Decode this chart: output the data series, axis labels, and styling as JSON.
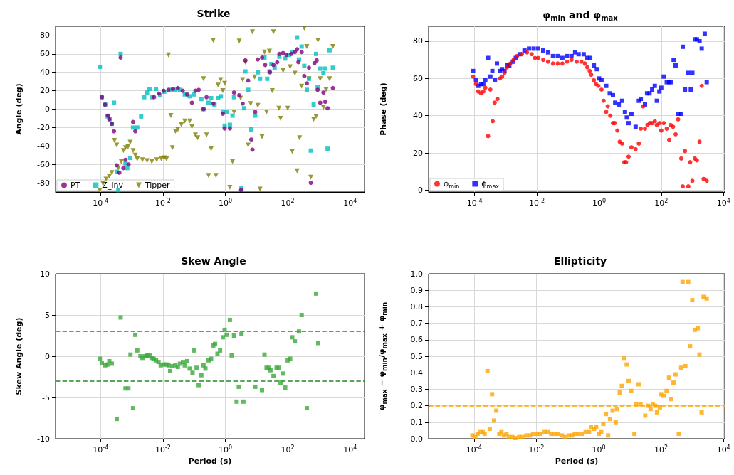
{
  "chart_data": [
    {
      "type": "scatter",
      "title": "Strike",
      "ylabel": "Angle (deg)",
      "log": "x",
      "grid": true,
      "legend": "bottom left",
      "xlim": [
        3.6e-06,
        29000.0
      ],
      "xticks": [
        {
          "value": 0.0001,
          "label": "10$^{-4}$"
        },
        {
          "value": 0.01,
          "label": "10$^{-2}$"
        },
        {
          "value": 1,
          "label": "10$^{0}$"
        },
        {
          "value": 100,
          "label": "10$^{2}$"
        },
        {
          "value": 10000,
          "label": "10$^{4}$"
        }
      ],
      "ylim": [
        -90,
        90
      ],
      "yticks": [
        -80,
        -60,
        -40,
        -20,
        0,
        20,
        40,
        60,
        80
      ],
      "series": [
        {
          "name": "PT",
          "color": "#800080",
          "marker": "circle",
          "x": [
            0.00011,
            0.00014,
            0.00017,
            0.00019,
            0.00023,
            0.00027,
            0.00033,
            0.0004,
            0.00044,
            0.00054,
            0.00063,
            0.00079,
            0.0011,
            0.0013,
            0.0052,
            0.0074,
            0.0105,
            0.015,
            0.021,
            0.03,
            0.043,
            0.06,
            0.085,
            0.11,
            0.14,
            0.2,
            0.25,
            0.41,
            0.83,
            0.95,
            1.4,
            1.9,
            2.8,
            3.2,
            3.6,
            4.4,
            5.4,
            6.8,
            7.4,
            9.1,
            11,
            15,
            19,
            27,
            35,
            46,
            54,
            71,
            91,
            130,
            170,
            200,
            220,
            280,
            340,
            410,
            480,
            550,
            720,
            850,
            910,
            1100,
            1400,
            1600,
            1900,
            2800
          ],
          "values": [
            13,
            5,
            -7,
            -11,
            -16,
            -24,
            -61,
            -69,
            56,
            -64,
            -55,
            -60,
            -14,
            -24,
            13,
            17,
            20,
            21,
            22,
            23,
            20,
            16,
            7,
            20,
            21,
            0,
            13,
            6,
            -5,
            -21,
            -21,
            18,
            15,
            -88,
            6,
            53,
            31,
            -33,
            -44,
            -3,
            54,
            56,
            48,
            40,
            48,
            51,
            60,
            61,
            59,
            60,
            62,
            65,
            51,
            62,
            36,
            28,
            45,
            -80,
            50,
            53,
            21,
            7,
            18,
            8,
            1,
            23
          ]
        },
        {
          "name": "Z_inv",
          "color": "#00bfbf",
          "marker": "square",
          "x": [
            9.5e-05,
            0.00011,
            0.00014,
            0.00017,
            0.0002,
            0.00023,
            0.00027,
            0.00033,
            0.00037,
            0.00044,
            0.00063,
            0.00072,
            0.00089,
            0.0011,
            0.0015,
            0.002,
            0.0025,
            0.0031,
            0.0037,
            0.0044,
            0.006,
            0.0081,
            0.011,
            0.018,
            0.025,
            0.035,
            0.05,
            0.072,
            0.1,
            0.17,
            0.2,
            0.29,
            0.35,
            0.45,
            0.59,
            0.72,
            0.83,
            0.95,
            1.1,
            1.4,
            1.7,
            1.9,
            3.3,
            4.0,
            4.4,
            5.4,
            6.8,
            9.1,
            11,
            13,
            18,
            22,
            26,
            30,
            38,
            54,
            83,
            110,
            140,
            200,
            230,
            280,
            340,
            410,
            480,
            550,
            680,
            810,
            910,
            1100,
            1400,
            1600,
            1900,
            2200,
            2800
          ],
          "values": [
            46,
            13,
            5,
            -8,
            -11,
            -16,
            7,
            -68,
            -88,
            60,
            -59,
            -64,
            -53,
            -20,
            -20,
            -8,
            13,
            18,
            22,
            13,
            22,
            15,
            19,
            21,
            21,
            21,
            16,
            14,
            16,
            11,
            0,
            7,
            12,
            5,
            12,
            14,
            -3,
            -18,
            -3,
            -17,
            -7,
            13,
            -86,
            1,
            41,
            21,
            -22,
            -7,
            40,
            33,
            56,
            33,
            41,
            49,
            45,
            57,
            55,
            59,
            62,
            78,
            54,
            68,
            47,
            21,
            33,
            -45,
            5,
            60,
            24,
            44,
            39,
            44,
            -43,
            64,
            45
          ]
        },
        {
          "name": "Tipper",
          "color": "#808000",
          "marker": "triangle",
          "x": [
            9.5e-05,
            0.00012,
            0.00015,
            0.00019,
            0.00023,
            0.00028,
            0.00033,
            0.00037,
            0.00046,
            0.00054,
            0.00063,
            0.00076,
            0.00089,
            0.0011,
            0.0013,
            0.0015,
            0.0022,
            0.0031,
            0.0044,
            0.0063,
            0.0089,
            0.011,
            0.013,
            0.015,
            0.018,
            0.02,
            0.025,
            0.03,
            0.039,
            0.05,
            0.072,
            0.085,
            0.11,
            0.13,
            0.2,
            0.25,
            0.29,
            0.35,
            0.41,
            0.5,
            0.59,
            0.71,
            0.83,
            0.95,
            1.4,
            1.7,
            1.9,
            2.8,
            3.1,
            3.6,
            4.4,
            5.4,
            6.5,
            7.4,
            8.7,
            11,
            13,
            15,
            18,
            21,
            26,
            32,
            35,
            52,
            59,
            71,
            100,
            120,
            140,
            170,
            200,
            240,
            280,
            340,
            410,
            480,
            550,
            680,
            810,
            930,
            1100,
            1400,
            1700,
            2200,
            2800
          ],
          "values": [
            -88,
            -81,
            -76,
            -73,
            -69,
            -34,
            -39,
            -64,
            -57,
            -45,
            -42,
            -41,
            -36,
            -45,
            -50,
            -54,
            -55,
            -56,
            -57,
            -55,
            -54,
            -53,
            -54,
            59,
            -7,
            -42,
            -24,
            -22,
            -17,
            -13,
            -13,
            -19,
            -28,
            -31,
            33,
            -28,
            -72,
            -43,
            75,
            -72,
            26,
            32,
            20,
            28,
            -85,
            -57,
            -3,
            74,
            12,
            32,
            51,
            -39,
            6,
            84,
            35,
            4,
            -87,
            -30,
            62,
            -3,
            63,
            20,
            84,
            1,
            -10,
            42,
            1,
            46,
            -46,
            39,
            -67,
            -31,
            25,
            88,
            68,
            33,
            -74,
            -11,
            -8,
            75,
            33,
            2,
            21,
            33,
            68
          ]
        }
      ]
    },
    {
      "type": "scatter",
      "title": "φ$_{min}$ and φ$_{max}$",
      "ylabel": "Phase (deg)",
      "log": "x",
      "grid": true,
      "legend": "bottom left",
      "xlim": [
        3.3e-06,
        11000.0
      ],
      "xticks": [
        {
          "value": 0.0001,
          "label": "10$^{-4}$"
        },
        {
          "value": 0.01,
          "label": "10$^{-2}$"
        },
        {
          "value": 1,
          "label": "10$^{0}$"
        },
        {
          "value": 100,
          "label": "10$^{2}$"
        },
        {
          "value": 10000,
          "label": "10$^{4}$"
        }
      ],
      "ylim": [
        -1,
        88
      ],
      "yticks": [
        0,
        20,
        40,
        60,
        80
      ],
      "series": [
        {
          "name": "ϕ$_{min}$",
          "color": "#ff0000",
          "marker": "circle",
          "x": [
            8.9e-05,
            0.00011,
            0.00013,
            0.00016,
            0.00019,
            0.00022,
            0.00027,
            0.00032,
            0.00038,
            0.00044,
            0.00054,
            0.00065,
            0.00076,
            0.00091,
            0.0011,
            0.0014,
            0.0018,
            0.0023,
            0.0033,
            0.0048,
            0.0068,
            0.0087,
            0.011,
            0.016,
            0.023,
            0.033,
            0.047,
            0.066,
            0.093,
            0.13,
            0.19,
            0.27,
            0.35,
            0.42,
            0.5,
            0.56,
            0.68,
            0.79,
            0.95,
            1.2,
            1.4,
            1.7,
            1.9,
            2.3,
            2.8,
            3.2,
            3.9,
            4.6,
            5.5,
            6.5,
            7.4,
            8.9,
            11,
            15,
            19,
            22,
            26,
            30,
            36,
            43,
            51,
            62,
            72,
            87,
            100,
            120,
            150,
            180,
            200,
            240,
            290,
            350,
            440,
            490,
            580,
            740,
            850,
            1000,
            1200,
            1400,
            1700,
            2000,
            2300,
            2900
          ],
          "values": [
            61,
            57,
            53,
            52,
            53,
            55,
            29,
            54,
            37,
            47,
            49,
            60,
            61,
            63,
            66,
            68,
            70,
            72,
            73,
            74,
            73,
            71,
            71,
            70,
            69,
            68,
            68,
            68,
            69,
            70,
            69,
            69,
            68,
            66,
            64,
            62,
            59,
            57,
            56,
            54,
            48,
            42,
            45,
            40,
            36,
            36,
            32,
            26,
            25,
            15,
            15,
            18,
            23,
            22,
            25,
            33,
            45,
            33,
            35,
            36,
            36,
            37,
            35,
            36,
            32,
            36,
            33,
            27,
            35,
            34,
            30,
            38,
            17,
            2,
            21,
            2,
            15,
            5,
            17,
            16,
            26,
            56,
            6,
            5
          ]
        },
        {
          "name": "ϕ$_{max}$",
          "color": "#0000ff",
          "marker": "square",
          "x": [
            8.9e-05,
            0.00011,
            0.00013,
            0.00016,
            0.00019,
            0.00022,
            0.00027,
            0.00032,
            0.00037,
            0.00045,
            0.00052,
            0.00065,
            0.00076,
            0.00091,
            0.0011,
            0.0013,
            0.0017,
            0.0021,
            0.0028,
            0.004,
            0.0056,
            0.0079,
            0.011,
            0.016,
            0.023,
            0.033,
            0.047,
            0.066,
            0.093,
            0.13,
            0.17,
            0.22,
            0.32,
            0.42,
            0.52,
            0.68,
            0.85,
            1.0,
            1.2,
            1.7,
            2.2,
            2.8,
            3.3,
            4.3,
            5.5,
            6.8,
            7.8,
            8.9,
            11,
            15,
            19,
            22,
            30,
            35,
            42,
            51,
            62,
            72,
            87,
            100,
            120,
            150,
            180,
            210,
            250,
            290,
            350,
            440,
            490,
            580,
            740,
            890,
            1000,
            1200,
            1400,
            1700,
            2000,
            2500,
            2900
          ],
          "values": [
            64,
            59,
            56,
            57,
            57,
            59,
            71,
            61,
            64,
            59,
            68,
            64,
            65,
            64,
            67,
            67,
            69,
            71,
            73,
            75,
            76,
            76,
            76,
            75,
            74,
            72,
            72,
            71,
            72,
            72,
            74,
            73,
            73,
            71,
            71,
            67,
            65,
            60,
            59,
            56,
            52,
            51,
            47,
            46,
            48,
            42,
            39,
            36,
            41,
            34,
            48,
            49,
            46,
            52,
            52,
            54,
            56,
            48,
            53,
            55,
            61,
            58,
            58,
            58,
            70,
            67,
            41,
            41,
            77,
            54,
            63,
            54,
            63,
            81,
            81,
            80,
            76,
            84,
            58
          ]
        }
      ]
    },
    {
      "type": "scatter",
      "title": "Skew Angle",
      "xlabel": "Period (s)",
      "ylabel": "Skew Angle (deg)",
      "log": "x",
      "grid": true,
      "xlim": [
        3.6e-06,
        29000.0
      ],
      "xticks": [
        {
          "value": 0.0001,
          "label": "10$^{-4}$"
        },
        {
          "value": 0.01,
          "label": "10$^{-2}$"
        },
        {
          "value": 1,
          "label": "10$^{0}$"
        },
        {
          "value": 100,
          "label": "10$^{2}$"
        },
        {
          "value": 10000,
          "label": "10$^{4}$"
        }
      ],
      "ylim": [
        -10,
        10
      ],
      "yticks": [
        -10,
        -5,
        0,
        5,
        10
      ],
      "ref_lines": [
        {
          "axis": "y",
          "value": 3,
          "color": "#228b22",
          "line_style": "dashed"
        },
        {
          "axis": "y",
          "value": -3,
          "color": "#228b22",
          "line_style": "dashed"
        }
      ],
      "series": [
        {
          "color": "#3aa83a",
          "marker": "square",
          "x": [
            9.5e-05,
            0.00011,
            0.00014,
            0.00017,
            0.00019,
            0.00023,
            0.00033,
            0.00044,
            0.00063,
            0.00078,
            0.00091,
            0.0011,
            0.0013,
            0.0015,
            0.0019,
            0.0022,
            0.0026,
            0.0031,
            0.0037,
            0.0043,
            0.005,
            0.006,
            0.0072,
            0.0085,
            0.0105,
            0.013,
            0.015,
            0.017,
            0.02,
            0.025,
            0.03,
            0.035,
            0.044,
            0.05,
            0.06,
            0.072,
            0.089,
            0.1,
            0.12,
            0.14,
            0.17,
            0.2,
            0.23,
            0.29,
            0.35,
            0.41,
            0.47,
            0.56,
            0.68,
            0.83,
            0.95,
            1.1,
            1.4,
            1.6,
            1.9,
            2.3,
            2.7,
            3.3,
            3.8,
            9.1,
            15,
            18,
            21,
            25,
            28,
            35,
            44,
            52,
            59,
            71,
            83,
            100,
            120,
            140,
            170,
            230,
            280,
            410,
            810,
            950
          ],
          "values": [
            -0.3,
            -0.8,
            -1.1,
            -1.0,
            -0.6,
            -0.9,
            -7.6,
            4.7,
            -3.9,
            -3.9,
            0.2,
            -6.3,
            2.6,
            0.7,
            0,
            -0.2,
            0,
            0.1,
            0.1,
            -0.2,
            -0.3,
            -0.5,
            -0.7,
            -1.1,
            -1.0,
            -1.0,
            -1.1,
            -1.8,
            -1.2,
            -1.1,
            -1.3,
            -0.9,
            -0.7,
            -1.1,
            -0.6,
            -1.5,
            -2.0,
            0.7,
            -1.4,
            -3.5,
            -2.3,
            -1.1,
            -1.5,
            -0.5,
            -0.3,
            1.3,
            1.5,
            0.3,
            0.7,
            2.3,
            3.2,
            2.6,
            4.4,
            0.1,
            2.5,
            -5.5,
            -3.7,
            2.7,
            -5.5,
            -3.7,
            -4.1,
            0.2,
            -1.4,
            -1.4,
            -1.7,
            -2.4,
            -1.4,
            -1.4,
            -3.2,
            -2.1,
            -3.8,
            -0.5,
            -0.3,
            2.3,
            1.8,
            3.0,
            5.0,
            -6.3,
            7.6,
            1.6
          ]
        }
      ]
    },
    {
      "type": "scatter",
      "title": "Ellipticity",
      "xlabel": "Period (s)",
      "ylabel": "φ$_{max}$ − φ$_{min}$/φ$_{max}$ + φ$_{min}$",
      "log": "x",
      "grid": true,
      "xlim": [
        3.5e-06,
        11000.0
      ],
      "xticks": [
        {
          "value": 0.0001,
          "label": "10$^{-4}$"
        },
        {
          "value": 0.01,
          "label": "10$^{-2}$"
        },
        {
          "value": 1,
          "label": "10$^{0}$"
        },
        {
          "value": 100,
          "label": "10$^{2}$"
        },
        {
          "value": 10000,
          "label": "10$^{4}$"
        }
      ],
      "ylim": [
        0,
        1
      ],
      "yticks": [
        {
          "value": 0,
          "label": "0.0"
        },
        0.1,
        0.2,
        0.3,
        0.4,
        0.5,
        0.6,
        0.7,
        0.8,
        0.9,
        {
          "value": 1,
          "label": "1.0"
        }
      ],
      "ref_lines": [
        {
          "axis": "y",
          "value": 0.2,
          "color": "#ffa500",
          "line_style": "dashed"
        }
      ],
      "series": [
        {
          "color": "#ffa500",
          "marker": "square",
          "x": [
            8.9e-05,
            0.00011,
            0.00013,
            0.00016,
            0.00019,
            0.00022,
            0.00027,
            0.00032,
            0.00038,
            0.00044,
            0.00052,
            0.00065,
            0.00076,
            0.00091,
            0.0011,
            0.0013,
            0.0017,
            0.0021,
            0.0028,
            0.0036,
            0.0048,
            0.0062,
            0.0079,
            0.0105,
            0.013,
            0.018,
            0.023,
            0.03,
            0.039,
            0.05,
            0.066,
            0.085,
            0.11,
            0.14,
            0.17,
            0.22,
            0.3,
            0.38,
            0.49,
            0.56,
            0.71,
            0.83,
            1.0,
            1.2,
            1.4,
            1.7,
            2.0,
            2.3,
            2.8,
            3.5,
            3.9,
            4.7,
            5.5,
            6.6,
            7.9,
            9.1,
            11,
            14,
            16,
            19,
            22,
            31,
            38,
            46,
            54,
            65,
            74,
            91,
            100,
            120,
            150,
            180,
            210,
            250,
            290,
            370,
            440,
            490,
            600,
            740,
            850,
            1000,
            1200,
            1500,
            1700,
            2000,
            2300,
            2900
          ],
          "values": [
            0.02,
            0.01,
            0.03,
            0.04,
            0.04,
            0.03,
            0.41,
            0.06,
            0.27,
            0.11,
            0.17,
            0.03,
            0.04,
            0.02,
            0.03,
            0.01,
            0.01,
            0.004,
            0.01,
            0.01,
            0.02,
            0.02,
            0.03,
            0.03,
            0.03,
            0.04,
            0.04,
            0.03,
            0.03,
            0.03,
            0.02,
            0.01,
            0.02,
            0.02,
            0.03,
            0.03,
            0.03,
            0.04,
            0.04,
            0.07,
            0.06,
            0.07,
            0.03,
            0.04,
            0.09,
            0.15,
            0.02,
            0.12,
            0.17,
            0.1,
            0.18,
            0.28,
            0.32,
            0.49,
            0.45,
            0.35,
            0.29,
            0.03,
            0.21,
            0.33,
            0.21,
            0.14,
            0.2,
            0.18,
            0.21,
            0.2,
            0.16,
            0.19,
            0.27,
            0.26,
            0.29,
            0.37,
            0.24,
            0.34,
            0.39,
            0.03,
            0.43,
            0.95,
            0.44,
            0.95,
            0.56,
            0.84,
            0.66,
            0.67,
            0.51,
            0.16,
            0.86,
            0.85
          ]
        }
      ]
    }
  ]
}
